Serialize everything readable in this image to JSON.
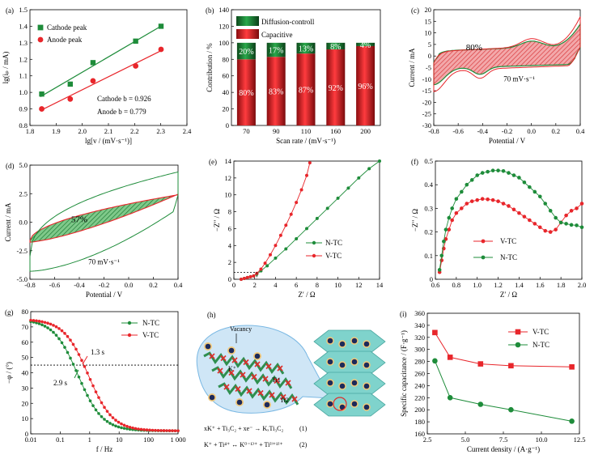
{
  "chart_data": [
    {
      "panel": "(a)",
      "type": "scatter",
      "xlabel": "lg[v / (mV·s⁻¹)]",
      "ylabel": "lg(iₚ / mA)",
      "xlim": [
        1.8,
        2.4
      ],
      "ylim": [
        0.8,
        1.5
      ],
      "xticks": [
        "1.8",
        "1.9",
        "2.0",
        "2.1",
        "2.2",
        "2.3",
        "2.4"
      ],
      "yticks": [
        "0.8",
        "0.9",
        "1.0",
        "1.1",
        "1.2",
        "1.3",
        "1.4",
        "1.5"
      ],
      "legend_position": "top-left",
      "series": [
        {
          "name": "Cathode peak",
          "color": "#1e8c3a",
          "marker": "square",
          "x": [
            1.845,
            1.954,
            2.041,
            2.204,
            2.301
          ],
          "y": [
            0.99,
            1.05,
            1.18,
            1.31,
            1.4
          ]
        },
        {
          "name": "Anode peak",
          "color": "#e8262b",
          "marker": "circle",
          "x": [
            1.845,
            1.954,
            2.041,
            2.204,
            2.301
          ],
          "y": [
            0.9,
            0.96,
            1.07,
            1.16,
            1.26
          ]
        }
      ],
      "annotations": [
        "Cathode   b = 0.926",
        "Anode      b = 0.779"
      ]
    },
    {
      "panel": "(b)",
      "type": "bar",
      "xlabel": "Scan rate / (mV·s⁻¹)",
      "ylabel": "Contribution / %",
      "ylim": [
        0,
        140
      ],
      "yticks": [
        "0",
        "20",
        "40",
        "60",
        "80",
        "100",
        "120",
        "140"
      ],
      "categories": [
        "70",
        "90",
        "110",
        "160",
        "200"
      ],
      "legend_position": "top",
      "series": [
        {
          "name": "Capacitive",
          "color": "#e8262b",
          "values": [
            80,
            83,
            87,
            92,
            96
          ]
        },
        {
          "name": "Diffusion-controll",
          "color": "#1e8c3a",
          "values": [
            20,
            17,
            13,
            8,
            4
          ]
        }
      ],
      "labels_capacitive": [
        "80%",
        "83%",
        "87%",
        "92%",
        "96%"
      ],
      "labels_diffusion": [
        "20%",
        "17%",
        "13%",
        "8%",
        "4%"
      ]
    },
    {
      "panel": "(c)",
      "type": "line",
      "xlabel": "Potential / V",
      "ylabel": "Current / mA",
      "xlim": [
        -0.8,
        0.4
      ],
      "ylim": [
        -30,
        20
      ],
      "xticks": [
        "-0.8",
        "-0.6",
        "-0.4",
        "-0.2",
        "0.0",
        "0.2",
        "0.4"
      ],
      "yticks": [
        "-30",
        "-25",
        "-20",
        "-15",
        "-10",
        "-5",
        "0",
        "5",
        "10",
        "15",
        "20"
      ],
      "annotation": "70 mV·s⁻¹",
      "label": "80%"
    },
    {
      "panel": "(d)",
      "type": "line",
      "xlabel": "Potential / V",
      "ylabel": "Current / mA",
      "xlim": [
        -0.8,
        0.4
      ],
      "ylim": [
        -5,
        5
      ],
      "xticks": [
        "-0.8",
        "-0.6",
        "-0.4",
        "-0.2",
        "0.0",
        "0.2",
        "0.4"
      ],
      "yticks": [
        "-5.0",
        "-2.5",
        "0.0",
        "2.5",
        "5.0"
      ],
      "annotation": "70 mV·s⁻¹",
      "label": "57%"
    },
    {
      "panel": "(e)",
      "type": "scatter",
      "xlabel": "Z′ / Ω",
      "ylabel": "−Z′′ / Ω",
      "xlim": [
        0,
        14
      ],
      "ylim": [
        0,
        14
      ],
      "xticks": [
        "0",
        "2",
        "4",
        "6",
        "8",
        "10",
        "12",
        "14"
      ],
      "yticks": [
        "0",
        "2",
        "4",
        "6",
        "8",
        "10",
        "12",
        "14"
      ],
      "legend_position": "bottom-right",
      "series": [
        {
          "name": "N-TC",
          "color": "#1e8c3a",
          "x": [
            0.7,
            1.0,
            1.3,
            1.6,
            1.9,
            2.2,
            2.6,
            3.2,
            4.0,
            5.0,
            6.0,
            7.0,
            8.0,
            9.0,
            10.0,
            11.0,
            12.0,
            13.0,
            14.0
          ],
          "y": [
            0.0,
            0.1,
            0.2,
            0.3,
            0.4,
            0.6,
            1.0,
            1.6,
            2.5,
            3.6,
            4.8,
            6.0,
            7.2,
            8.4,
            9.6,
            10.8,
            12.0,
            13.1,
            14.0
          ]
        },
        {
          "name": "V-TC",
          "color": "#e8262b",
          "x": [
            0.7,
            1.0,
            1.3,
            1.6,
            1.9,
            2.2,
            2.6,
            3.0,
            3.5,
            4.0,
            4.5,
            5.0,
            5.5,
            6.0,
            6.5,
            7.0,
            7.3
          ],
          "y": [
            0.0,
            0.1,
            0.2,
            0.3,
            0.4,
            0.7,
            1.2,
            1.9,
            2.9,
            4.0,
            5.2,
            6.4,
            7.7,
            9.1,
            10.6,
            12.3,
            13.8
          ]
        }
      ]
    },
    {
      "panel": "(f)",
      "type": "scatter",
      "xlabel": "Z′ / Ω",
      "ylabel": "−Z′′ / Ω",
      "xlim": [
        0.6,
        2.0
      ],
      "ylim": [
        0,
        0.5
      ],
      "xticks": [
        "0.6",
        "0.8",
        "1.0",
        "1.2",
        "1.4",
        "1.6",
        "1.8",
        "2.0"
      ],
      "yticks": [
        "0",
        "0.1",
        "0.2",
        "0.3",
        "0.4",
        "0.5"
      ],
      "legend_position": "bottom-right",
      "series": [
        {
          "name": "V-TC",
          "color": "#e8262b",
          "x": [
            0.64,
            0.66,
            0.68,
            0.7,
            0.73,
            0.76,
            0.8,
            0.85,
            0.9,
            0.95,
            1.0,
            1.05,
            1.1,
            1.15,
            1.2,
            1.25,
            1.3,
            1.35,
            1.4,
            1.45,
            1.5,
            1.55,
            1.6,
            1.65,
            1.7,
            1.75,
            1.8,
            1.85,
            1.9,
            1.95,
            2.0
          ],
          "y": [
            0.03,
            0.08,
            0.13,
            0.17,
            0.21,
            0.25,
            0.28,
            0.3,
            0.32,
            0.33,
            0.335,
            0.34,
            0.338,
            0.335,
            0.33,
            0.32,
            0.31,
            0.295,
            0.28,
            0.265,
            0.25,
            0.235,
            0.22,
            0.205,
            0.2,
            0.21,
            0.24,
            0.27,
            0.29,
            0.3,
            0.32
          ]
        },
        {
          "name": "N-TC",
          "color": "#1e8c3a",
          "x": [
            0.64,
            0.66,
            0.68,
            0.7,
            0.73,
            0.76,
            0.8,
            0.85,
            0.9,
            0.95,
            1.0,
            1.05,
            1.1,
            1.15,
            1.2,
            1.25,
            1.3,
            1.35,
            1.4,
            1.45,
            1.5,
            1.55,
            1.6,
            1.65,
            1.7,
            1.75,
            1.8,
            1.85,
            1.9,
            1.95,
            2.0
          ],
          "y": [
            0.04,
            0.1,
            0.16,
            0.21,
            0.26,
            0.3,
            0.34,
            0.37,
            0.4,
            0.42,
            0.44,
            0.45,
            0.455,
            0.46,
            0.46,
            0.458,
            0.45,
            0.44,
            0.43,
            0.41,
            0.39,
            0.37,
            0.35,
            0.32,
            0.29,
            0.26,
            0.24,
            0.235,
            0.23,
            0.228,
            0.22
          ]
        }
      ]
    },
    {
      "panel": "(g)",
      "type": "line",
      "xlabel": "f / Hz",
      "ylabel": "−φ / (°)",
      "xscale": "log",
      "xlim": [
        0.01,
        1000
      ],
      "ylim": [
        0,
        80
      ],
      "xticks": [
        "0.01",
        "0.1",
        "1",
        "10",
        "100",
        "1 000"
      ],
      "yticks": [
        "0",
        "10",
        "20",
        "30",
        "40",
        "50",
        "60",
        "70",
        "80"
      ],
      "legend_position": "top-right",
      "series": [
        {
          "name": "N-TC",
          "color": "#1e8c3a",
          "f_knee": 0.345
        },
        {
          "name": "V-TC",
          "color": "#e8262b",
          "f_knee": 0.77
        }
      ],
      "reference_line": 45,
      "annotations": [
        "1.3 s",
        "2.9 s"
      ]
    },
    {
      "panel": "(h)",
      "type": "diagram",
      "labels": [
        "Vacancy",
        "K⁺",
        "Ti1",
        "Ti2"
      ],
      "equation1": "xK⁺ + Ti₃C₂ + xe⁻ → KₓTi₃C₂",
      "equation1_num": "(1)",
      "equation2": "K⁺ + Ti⁴⁺ ↔ K⁽ⁱ⁻¹⁾⁺ + Ti⁽ⁱ⁺¹⁾⁺",
      "equation2_num": "(2)"
    },
    {
      "panel": "(i)",
      "type": "line",
      "xlabel": "Current density / (A·g⁻¹)",
      "ylabel": "Specific capacitance / (F·g⁻¹)",
      "xlim": [
        2.5,
        12.5
      ],
      "ylim": [
        160,
        360
      ],
      "xticks": [
        "2.5",
        "5.0",
        "7.5",
        "10.0",
        "12.5"
      ],
      "yticks": [
        "160",
        "180",
        "200",
        "220",
        "240",
        "260",
        "280",
        "300",
        "320",
        "340",
        "360"
      ],
      "legend_position": "top-right",
      "series": [
        {
          "name": "V-TC",
          "color": "#e8262b",
          "marker": "square",
          "x": [
            3,
            4,
            6,
            8,
            12
          ],
          "y": [
            328,
            287,
            276,
            273,
            271
          ]
        },
        {
          "name": "N-TC",
          "color": "#1e8c3a",
          "marker": "circle",
          "x": [
            3,
            4,
            6,
            8,
            12
          ],
          "y": [
            281,
            220,
            209,
            200,
            181
          ]
        }
      ]
    }
  ],
  "panel_labels": [
    "(a)",
    "(b)",
    "(c)",
    "(d)",
    "(e)",
    "(f)",
    "(g)",
    "(h)",
    "(i)"
  ],
  "colors": {
    "green": "#1e8c3a",
    "red": "#e8262b",
    "teal": "#7fd3cc"
  }
}
